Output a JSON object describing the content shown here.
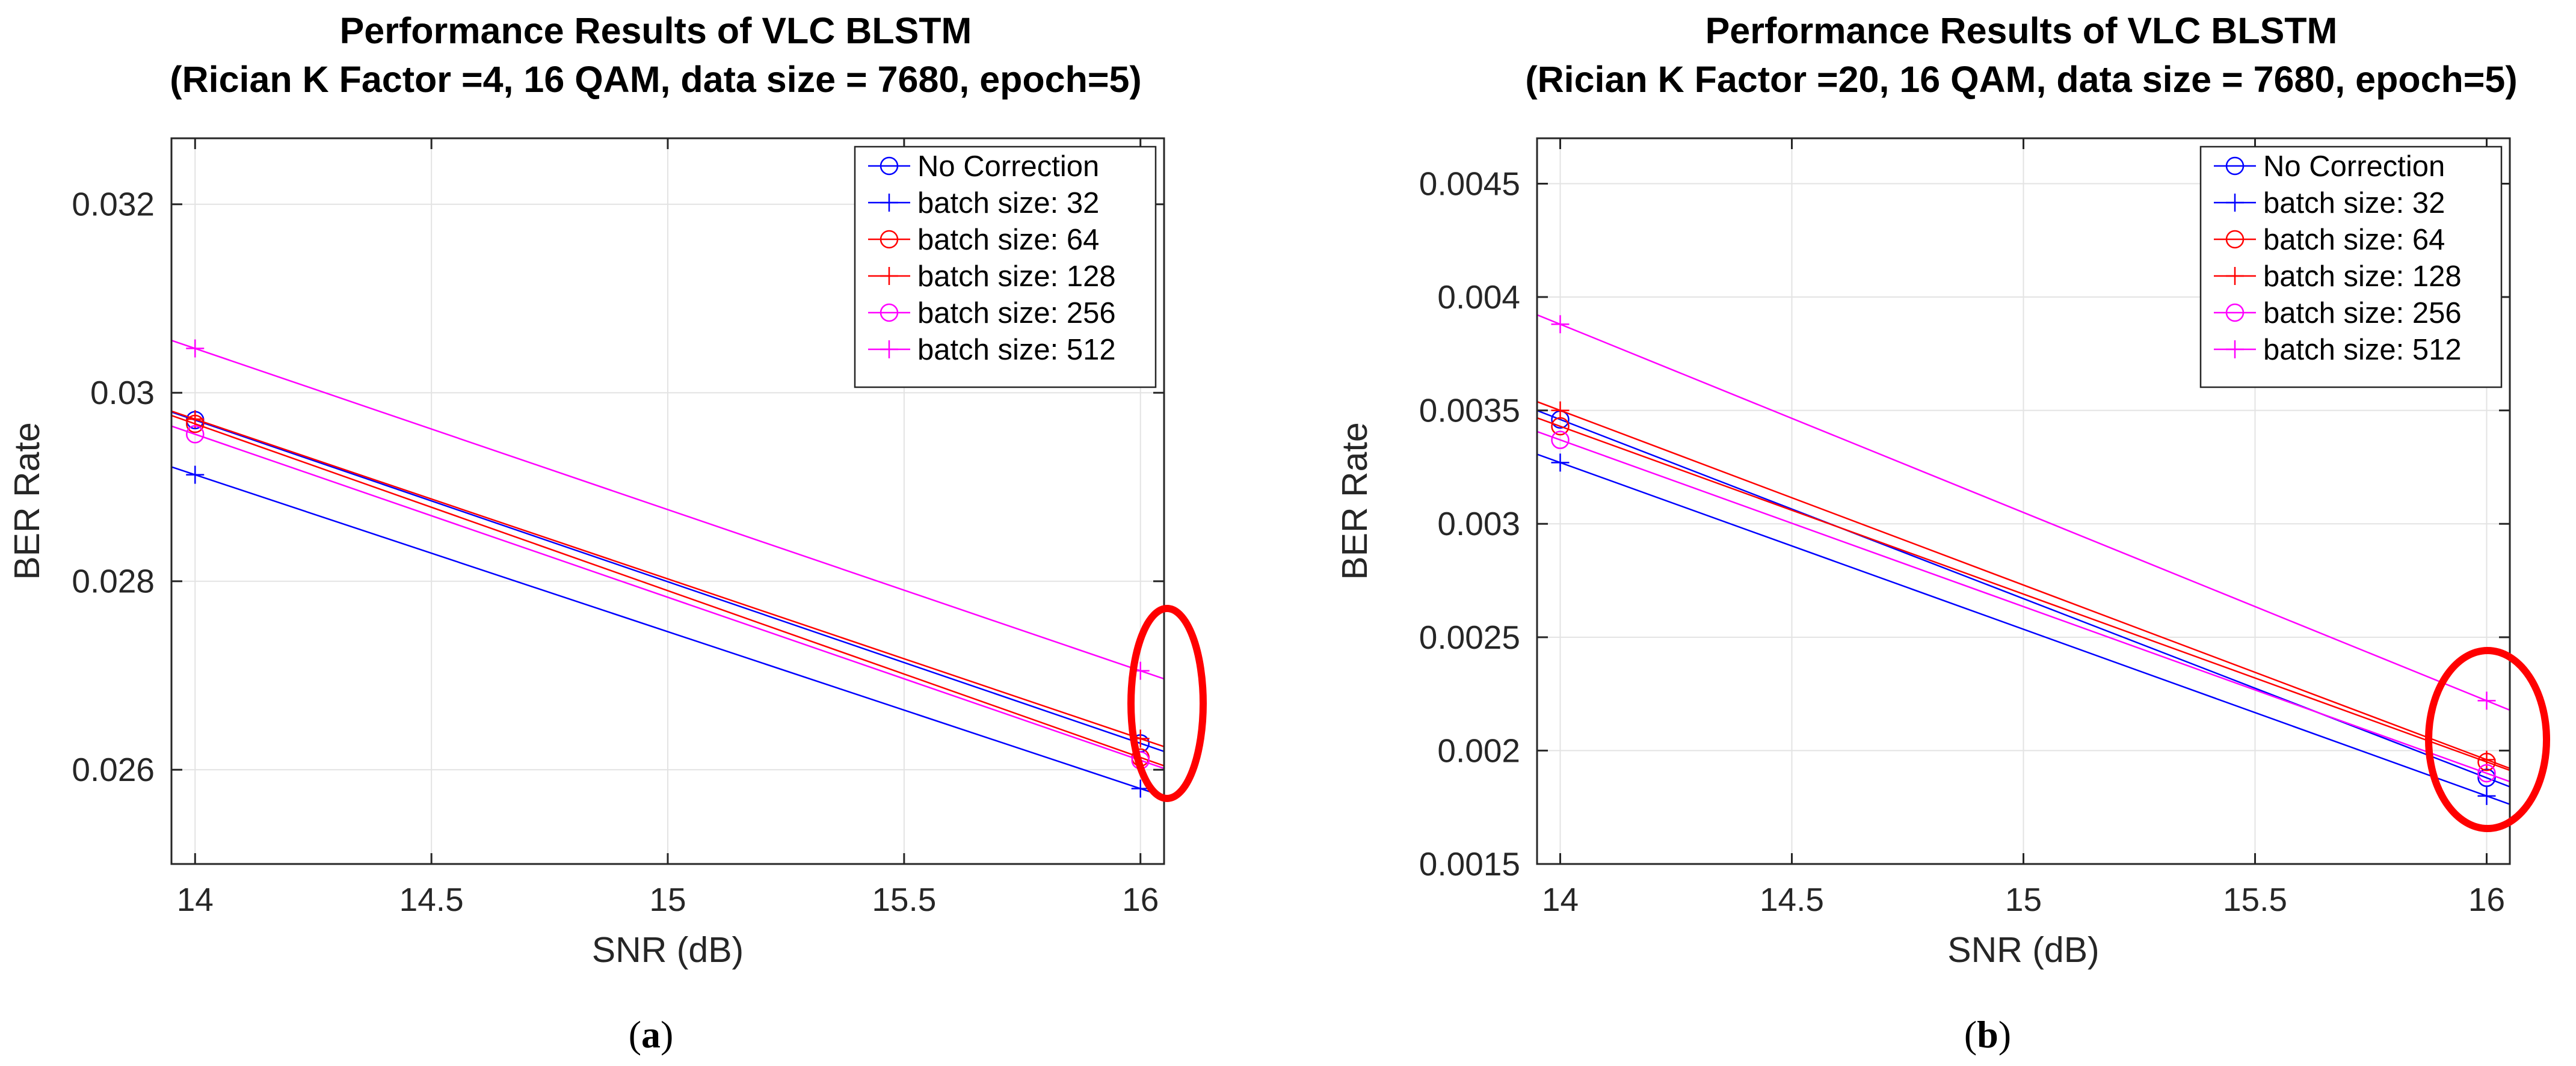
{
  "chart_data": [
    {
      "type": "line",
      "title": "Performance Results of VLC BLSTM",
      "subtitle": "(Rician K Factor =4, 16 QAM, data size = 7680, epoch=5)",
      "xlabel": "SNR (dB)",
      "ylabel": "BER Rate",
      "xlim": [
        13.95,
        16.05
      ],
      "ylim": [
        0.025,
        0.0327
      ],
      "xticks": [
        14,
        14.5,
        15,
        15.5,
        16
      ],
      "xtick_labels": [
        "14",
        "14.5",
        "15",
        "15.5",
        "16"
      ],
      "yticks": [
        0.026,
        0.028,
        0.03,
        0.032
      ],
      "ytick_labels": [
        "0.026",
        "0.028",
        "0.03",
        "0.032"
      ],
      "grid": true,
      "legend_position": "top-right",
      "caption": "a",
      "annotation": "red ellipse around SNR 16 dB points",
      "x": [
        14,
        16
      ],
      "series": [
        {
          "name": "No Correction",
          "values": [
            0.02971,
            0.02628
          ],
          "color": "#0000ff",
          "marker": "o"
        },
        {
          "name": "batch size: 32",
          "values": [
            0.02913,
            0.0258
          ],
          "color": "#0000ff",
          "marker": "+"
        },
        {
          "name": "batch size: 64",
          "values": [
            0.02967,
            0.02613
          ],
          "color": "#ff0000",
          "marker": "o"
        },
        {
          "name": "batch size: 128",
          "values": [
            0.02972,
            0.02633
          ],
          "color": "#ff0000",
          "marker": "+"
        },
        {
          "name": "batch size: 256",
          "values": [
            0.02956,
            0.0261
          ],
          "color": "#ff00ff",
          "marker": "o"
        },
        {
          "name": "batch size: 512",
          "values": [
            0.03047,
            0.02705
          ],
          "color": "#ff00ff",
          "marker": "+"
        }
      ]
    },
    {
      "type": "line",
      "title": "Performance Results of VLC BLSTM",
      "subtitle": "(Rician K Factor =20, 16 QAM, data size = 7680, epoch=5)",
      "xlabel": "SNR (dB)",
      "ylabel": "BER Rate",
      "xlim": [
        13.95,
        16.05
      ],
      "ylim": [
        0.0015,
        0.0047
      ],
      "xticks": [
        14,
        14.5,
        15,
        15.5,
        16
      ],
      "xtick_labels": [
        "14",
        "14.5",
        "15",
        "15.5",
        "16"
      ],
      "yticks": [
        0.0015,
        0.002,
        0.0025,
        0.003,
        0.0035,
        0.004,
        0.0045
      ],
      "ytick_labels": [
        "0.0015",
        "0.002",
        "0.0025",
        "0.003",
        "0.0035",
        "0.004",
        "0.0045"
      ],
      "grid": true,
      "legend_position": "top-right",
      "caption": "b",
      "annotation": "red ellipse around SNR 16 dB points",
      "x": [
        14,
        16
      ],
      "series": [
        {
          "name": "No Correction",
          "values": [
            0.00346,
            0.00188
          ],
          "color": "#0000ff",
          "marker": "o"
        },
        {
          "name": "batch size: 32",
          "values": [
            0.00327,
            0.0018
          ],
          "color": "#0000ff",
          "marker": "+"
        },
        {
          "name": "batch size: 64",
          "values": [
            0.00343,
            0.00195
          ],
          "color": "#ff0000",
          "marker": "o"
        },
        {
          "name": "batch size: 128",
          "values": [
            0.0035,
            0.00196
          ],
          "color": "#ff0000",
          "marker": "+"
        },
        {
          "name": "batch size: 256",
          "values": [
            0.00337,
            0.0019
          ],
          "color": "#ff00ff",
          "marker": "o"
        },
        {
          "name": "batch size: 512",
          "values": [
            0.00388,
            0.00222
          ],
          "color": "#ff00ff",
          "marker": "+"
        }
      ]
    }
  ]
}
